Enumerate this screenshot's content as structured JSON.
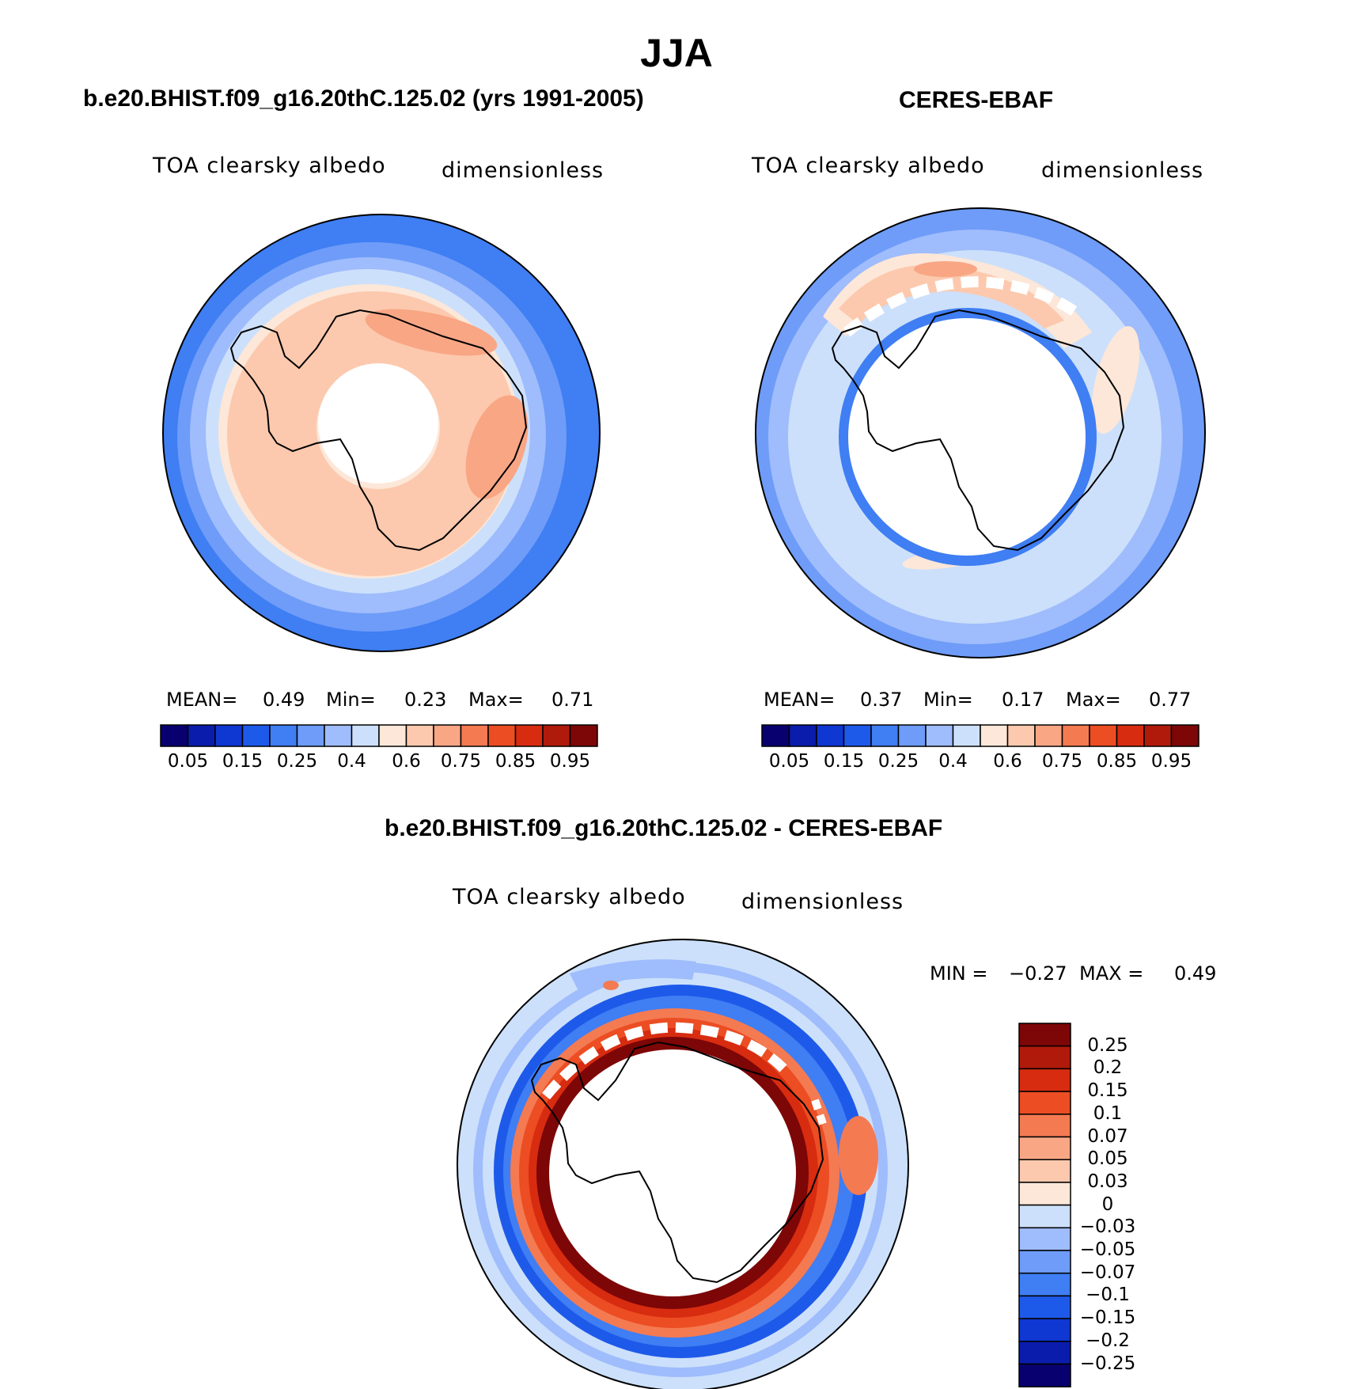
{
  "figure": {
    "season": "JJA",
    "colors": {
      "diverging": [
        "#08006e",
        "#0a1cac",
        "#0f37d2",
        "#1e5ae9",
        "#3f7ef3",
        "#6e9cf8",
        "#9fbcfc",
        "#cce0fb",
        "#fde7d8",
        "#fcc9ae",
        "#f9a685",
        "#f47a52",
        "#ec4d23",
        "#d72c10",
        "#b01a0b",
        "#7d0607"
      ],
      "diff": [
        "#7d0607",
        "#b01a0b",
        "#d72c10",
        "#ec4d23",
        "#f47a52",
        "#f9a685",
        "#fcc9ae",
        "#fde7d8",
        "#cce0fb",
        "#9fbcfc",
        "#6e9cf8",
        "#3f7ef3",
        "#1e5ae9",
        "#0f37d2",
        "#0a1cac",
        "#08006e"
      ]
    }
  },
  "panels": [
    {
      "title": "b.e20.BHIST.f09_g16.20thC.125.02 (yrs 1991-2005)",
      "variable": "TOA clearsky albedo",
      "units": "dimensionless",
      "mean_label": "MEAN=",
      "mean_value": "0.49",
      "min_label": "Min=",
      "min_value": "0.23",
      "max_label": "Max=",
      "max_value": "0.71",
      "colorbar_ticks": [
        "0.05",
        "0.15",
        "0.25",
        "0.4",
        "0.6",
        "0.75",
        "0.85",
        "0.95"
      ]
    },
    {
      "title": "CERES-EBAF",
      "variable": "TOA clearsky albedo",
      "units": "dimensionless",
      "mean_label": "MEAN=",
      "mean_value": "0.37",
      "min_label": "Min=",
      "min_value": "0.17",
      "max_label": "Max=",
      "max_value": "0.77",
      "colorbar_ticks": [
        "0.05",
        "0.15",
        "0.25",
        "0.4",
        "0.6",
        "0.75",
        "0.85",
        "0.95"
      ]
    },
    {
      "title": "b.e20.BHIST.f09_g16.20thC.125.02 - CERES-EBAF",
      "variable": "TOA clearsky albedo",
      "units": "dimensionless",
      "min_label": "MIN =",
      "min_value": "−0.27",
      "max_label": "MAX =",
      "max_value": "0.49",
      "colorbar_ticks": [
        "0.25",
        "0.2",
        "0.15",
        "0.1",
        "0.07",
        "0.05",
        "0.03",
        "0",
        "−0.03",
        "−0.05",
        "−0.07",
        "−0.1",
        "−0.15",
        "−0.2",
        "−0.25"
      ]
    }
  ],
  "chart_data": [
    {
      "type": "heatmap",
      "projection": "south-polar-stereographic",
      "title": "b.e20.BHIST.f09_g16.20thC.125.02 (yrs 1991-2005)",
      "variable": "TOA clearsky albedo",
      "units": "dimensionless",
      "stats": {
        "mean": 0.49,
        "min": 0.23,
        "max": 0.71
      },
      "contour_levels": [
        0.05,
        0.1,
        0.15,
        0.2,
        0.25,
        0.3,
        0.4,
        0.5,
        0.6,
        0.7,
        0.75,
        0.8,
        0.85,
        0.9,
        0.95
      ],
      "pattern": "low albedo (~0.25) at outer latitudes rising to ~0.6-0.7 over the Antarctic continent; no data near the pole"
    },
    {
      "type": "heatmap",
      "projection": "south-polar-stereographic",
      "title": "CERES-EBAF",
      "variable": "TOA clearsky albedo",
      "units": "dimensionless",
      "stats": {
        "mean": 0.37,
        "min": 0.17,
        "max": 0.77
      },
      "contour_levels": [
        0.05,
        0.1,
        0.15,
        0.2,
        0.25,
        0.3,
        0.4,
        0.5,
        0.6,
        0.7,
        0.75,
        0.8,
        0.85,
        0.9,
        0.95
      ],
      "pattern": "values ~0.25-0.5 over the ocean with ~0.6 near the sea-ice edge; missing data over the polar-night cap"
    },
    {
      "type": "heatmap",
      "projection": "south-polar-stereographic",
      "title": "b.e20.BHIST.f09_g16.20thC.125.02 - CERES-EBAF",
      "variable": "TOA clearsky albedo",
      "units": "dimensionless",
      "stats": {
        "min": -0.27,
        "max": 0.49
      },
      "contour_levels": [
        -0.25,
        -0.2,
        -0.15,
        -0.1,
        -0.07,
        -0.05,
        -0.03,
        0,
        0.03,
        0.05,
        0.07,
        0.1,
        0.15,
        0.2,
        0.25
      ],
      "pattern": "strong positive bias (>0.25) in a ring around the continent, negative bias (~-0.1) over the mid-latitude ocean"
    }
  ]
}
